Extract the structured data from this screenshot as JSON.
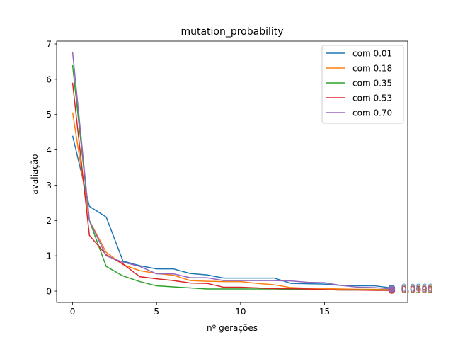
{
  "chart_data": {
    "type": "line",
    "title": "mutation_probability",
    "xlabel": "nº gerações",
    "ylabel": "avaliação",
    "xlim": [
      -0.95,
      19.95
    ],
    "ylim": [
      -0.32,
      7.08
    ],
    "xticks": [
      0,
      5,
      10,
      15
    ],
    "yticks": [
      0,
      1,
      2,
      3,
      4,
      5,
      6,
      7
    ],
    "grid": false,
    "legend_position": "top-right",
    "x": [
      0,
      1,
      2,
      3,
      4,
      5,
      6,
      7,
      8,
      9,
      10,
      11,
      12,
      13,
      14,
      15,
      16,
      17,
      18,
      19
    ],
    "series": [
      {
        "name": "com 0.01",
        "color": "#1f77b4",
        "values": [
          4.4,
          2.4,
          2.1,
          0.85,
          0.72,
          0.63,
          0.63,
          0.5,
          0.46,
          0.37,
          0.37,
          0.37,
          0.37,
          0.22,
          0.21,
          0.2,
          0.16,
          0.15,
          0.15,
          0.09
        ]
      },
      {
        "name": "com 0.18",
        "color": "#ff7f0e",
        "values": [
          5.06,
          2.0,
          1.1,
          0.75,
          0.58,
          0.5,
          0.45,
          0.3,
          0.28,
          0.27,
          0.27,
          0.22,
          0.18,
          0.1,
          0.08,
          0.07,
          0.06,
          0.05,
          0.05,
          0.04
        ]
      },
      {
        "name": "com 0.35",
        "color": "#2ca02c",
        "values": [
          6.4,
          2.0,
          0.7,
          0.43,
          0.27,
          0.15,
          0.12,
          0.09,
          0.06,
          0.06,
          0.06,
          0.06,
          0.06,
          0.05,
          0.04,
          0.04,
          0.03,
          0.03,
          0.03,
          0.03
        ]
      },
      {
        "name": "com 0.53",
        "color": "#d62728",
        "values": [
          5.9,
          1.58,
          1.03,
          0.77,
          0.41,
          0.35,
          0.3,
          0.23,
          0.22,
          0.11,
          0.11,
          0.09,
          0.07,
          0.07,
          0.06,
          0.04,
          0.03,
          0.03,
          0.02,
          0.02
        ]
      },
      {
        "name": "com 0.70",
        "color": "#9467bd",
        "values": [
          6.77,
          2.0,
          1.0,
          0.82,
          0.7,
          0.49,
          0.49,
          0.38,
          0.38,
          0.3,
          0.3,
          0.3,
          0.3,
          0.29,
          0.25,
          0.24,
          0.16,
          0.11,
          0.1,
          0.06
        ]
      }
    ],
    "end_labels": [
      {
        "series": "com 0.01",
        "text": "0.0866"
      },
      {
        "series": "com 0.18",
        "text": "0.0405"
      },
      {
        "series": "com 0.35",
        "text": "0.0300"
      },
      {
        "series": "com 0.53",
        "text": "0.0189"
      },
      {
        "series": "com 0.70",
        "text": "0.0606"
      }
    ]
  }
}
